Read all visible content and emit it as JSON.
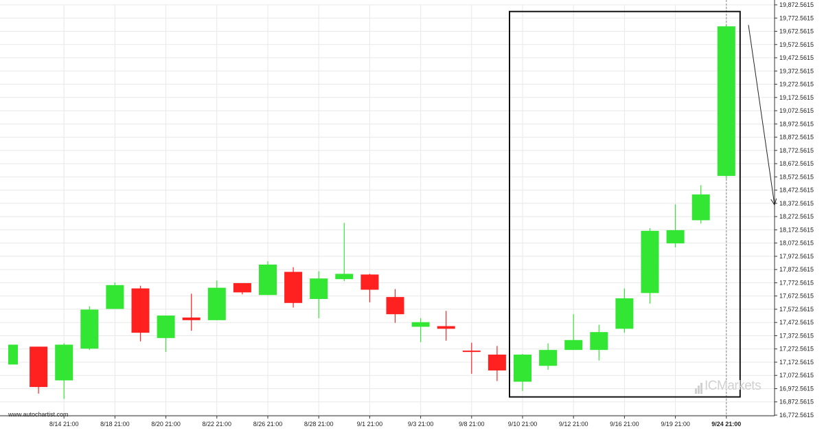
{
  "site": "www.autochartist.com",
  "brand": "ICMarkets",
  "colors": {
    "up": "#33e633",
    "down": "#ff2020",
    "grid": "#e8e8e8",
    "box": "#111111"
  },
  "chart_data": {
    "type": "candlestick",
    "y_min": 16772.5615,
    "y_max": 19872.5615,
    "y_ticks": [
      "19,872.5615",
      "19,772.5615",
      "19,672.5615",
      "19,572.5615",
      "19,472.5615",
      "19,372.5615",
      "19,272.5615",
      "19,172.5615",
      "19,072.5615",
      "18,972.5615",
      "18,872.5615",
      "18,772.5615",
      "18,672.5615",
      "18,572.5615",
      "18,472.5615",
      "18,372.5615",
      "18,272.5615",
      "18,172.5615",
      "18,072.5615",
      "17,972.5615",
      "17,872.5615",
      "17,772.5615",
      "17,672.5615",
      "17,572.5615",
      "17,472.5615",
      "17,372.5615",
      "17,272.5615",
      "17,172.5615",
      "17,072.5615",
      "16,972.5615",
      "16,872.5615",
      "16,772.5615"
    ],
    "x_labels": [
      {
        "index": 2,
        "label": "8/14 21:00"
      },
      {
        "index": 4,
        "label": "8/18 21:00"
      },
      {
        "index": 6,
        "label": "8/20 21:00"
      },
      {
        "index": 8,
        "label": "8/22 21:00"
      },
      {
        "index": 10,
        "label": "8/26 21:00"
      },
      {
        "index": 12,
        "label": "8/28 21:00"
      },
      {
        "index": 14,
        "label": "9/1 21:00"
      },
      {
        "index": 16,
        "label": "9/3 21:00"
      },
      {
        "index": 18,
        "label": "9/8 21:00"
      },
      {
        "index": 20,
        "label": "9/10 21:00"
      },
      {
        "index": 22,
        "label": "9/12 21:00"
      },
      {
        "index": 24,
        "label": "9/16 21:00"
      },
      {
        "index": 26,
        "label": "9/19 21:00"
      },
      {
        "index": 28,
        "label": "9/24 21:00"
      }
    ],
    "candles": [
      {
        "o": 17155,
        "h": 17305,
        "l": 17155,
        "c": 17305
      },
      {
        "o": 17290,
        "h": 17290,
        "l": 16935,
        "c": 16985
      },
      {
        "o": 17035,
        "h": 17315,
        "l": 16895,
        "c": 17305
      },
      {
        "o": 17275,
        "h": 17595,
        "l": 17265,
        "c": 17570
      },
      {
        "o": 17575,
        "h": 17775,
        "l": 17575,
        "c": 17755
      },
      {
        "o": 17730,
        "h": 17750,
        "l": 17330,
        "c": 17395
      },
      {
        "o": 17355,
        "h": 17525,
        "l": 17250,
        "c": 17525
      },
      {
        "o": 17510,
        "h": 17690,
        "l": 17410,
        "c": 17490
      },
      {
        "o": 17490,
        "h": 17790,
        "l": 17490,
        "c": 17735
      },
      {
        "o": 17770,
        "h": 17770,
        "l": 17685,
        "c": 17700
      },
      {
        "o": 17680,
        "h": 17935,
        "l": 17680,
        "c": 17910
      },
      {
        "o": 17855,
        "h": 17890,
        "l": 17585,
        "c": 17620
      },
      {
        "o": 17650,
        "h": 17860,
        "l": 17505,
        "c": 17805
      },
      {
        "o": 17800,
        "h": 18225,
        "l": 17785,
        "c": 17840
      },
      {
        "o": 17835,
        "h": 17840,
        "l": 17625,
        "c": 17720
      },
      {
        "o": 17665,
        "h": 17725,
        "l": 17470,
        "c": 17535
      },
      {
        "o": 17440,
        "h": 17505,
        "l": 17325,
        "c": 17475
      },
      {
        "o": 17445,
        "h": 17560,
        "l": 17335,
        "c": 17425
      },
      {
        "o": 17260,
        "h": 17320,
        "l": 17085,
        "c": 17255
      },
      {
        "o": 17230,
        "h": 17295,
        "l": 17030,
        "c": 17110
      },
      {
        "o": 17025,
        "h": 17235,
        "l": 16955,
        "c": 17230
      },
      {
        "o": 17145,
        "h": 17315,
        "l": 17115,
        "c": 17265
      },
      {
        "o": 17265,
        "h": 17535,
        "l": 17265,
        "c": 17340
      },
      {
        "o": 17265,
        "h": 17455,
        "l": 17185,
        "c": 17400
      },
      {
        "o": 17425,
        "h": 17730,
        "l": 17395,
        "c": 17655
      },
      {
        "o": 17695,
        "h": 18185,
        "l": 17615,
        "c": 18165
      },
      {
        "o": 18070,
        "h": 18365,
        "l": 18040,
        "c": 18170
      },
      {
        "o": 18245,
        "h": 18510,
        "l": 18220,
        "c": 18440
      },
      {
        "o": 18580,
        "h": 19720,
        "l": 18560,
        "c": 19710
      }
    ],
    "highlight_box": {
      "from_index": 20,
      "to_index": 28
    },
    "last_index": 28,
    "forecast_arrow": {
      "from_y": 19720,
      "to_y": 18360
    }
  }
}
